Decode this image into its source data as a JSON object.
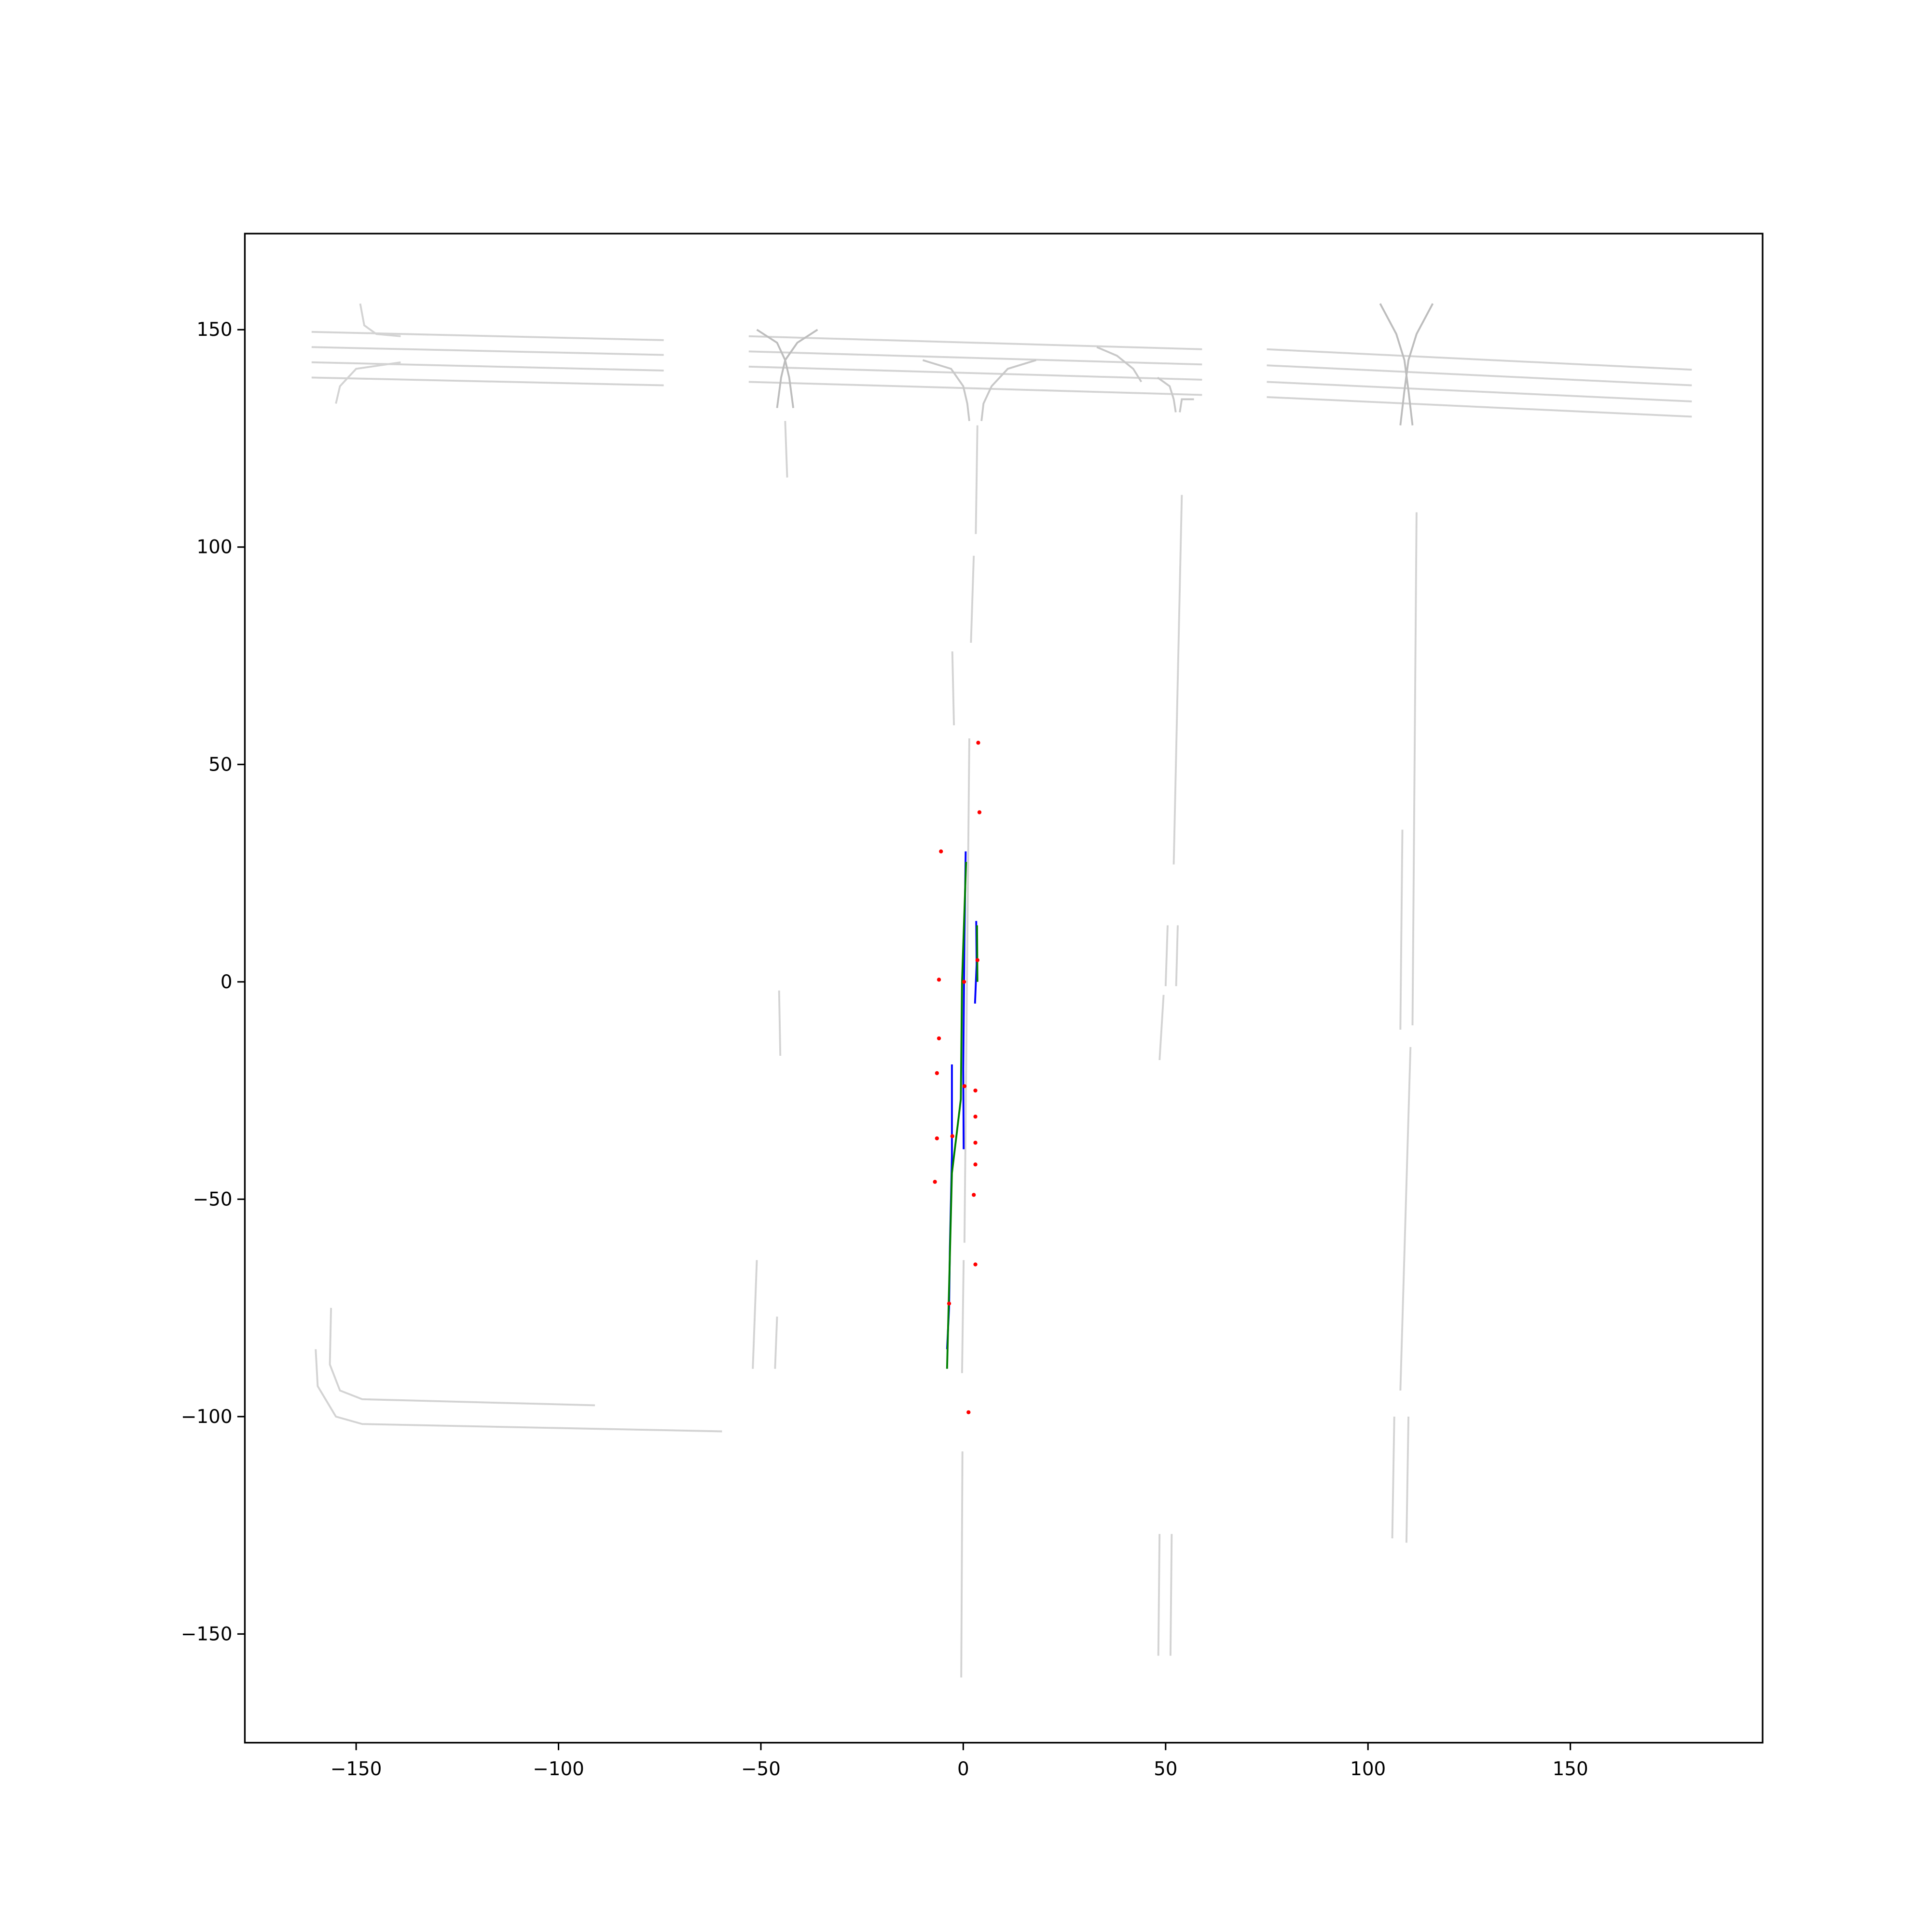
{
  "chart_data": {
    "type": "line",
    "xlim": [
      -177.5,
      197.5
    ],
    "ylim": [
      -175,
      172.1
    ],
    "xticks": [
      {
        "value": -150,
        "label": "−150"
      },
      {
        "value": -100,
        "label": "−100"
      },
      {
        "value": -50,
        "label": "−50"
      },
      0,
      50,
      100,
      150
    ],
    "yticks": [
      {
        "value": -150,
        "label": "−150"
      },
      {
        "value": -100,
        "label": "−100"
      },
      {
        "value": -50,
        "label": "−50"
      },
      0,
      50,
      100,
      150
    ],
    "grid": false,
    "series": [
      {
        "color": "#d3d3d3",
        "x": [
          -161,
          -74
        ],
        "y": [
          149.5,
          147.6
        ]
      },
      {
        "color": "#d3d3d3",
        "x": [
          -161,
          -74
        ],
        "y": [
          146,
          144.2
        ]
      },
      {
        "color": "#d3d3d3",
        "x": [
          -161,
          -74
        ],
        "y": [
          142.5,
          140.6
        ]
      },
      {
        "color": "#d3d3d3",
        "x": [
          -161,
          -74
        ],
        "y": [
          139,
          137.2
        ]
      },
      {
        "color": "#d3d3d3",
        "x": [
          -53,
          59
        ],
        "y": [
          148.5,
          145.5
        ]
      },
      {
        "color": "#d3d3d3",
        "x": [
          -53,
          59
        ],
        "y": [
          145,
          142
        ]
      },
      {
        "color": "#d3d3d3",
        "x": [
          -53,
          59
        ],
        "y": [
          141.5,
          138.5
        ]
      },
      {
        "color": "#d3d3d3",
        "x": [
          -53,
          59
        ],
        "y": [
          138,
          135
        ]
      },
      {
        "color": "#d3d3d3",
        "x": [
          75,
          180
        ],
        "y": [
          145.5,
          140.8
        ]
      },
      {
        "color": "#d3d3d3",
        "x": [
          75,
          180
        ],
        "y": [
          141.8,
          137.2
        ]
      },
      {
        "color": "#d3d3d3",
        "x": [
          75,
          180
        ],
        "y": [
          138,
          133.5
        ]
      },
      {
        "color": "#d3d3d3",
        "x": [
          75,
          180
        ],
        "y": [
          134.5,
          130
        ]
      },
      {
        "color": "#bdbdbd",
        "x": [
          -51,
          -46,
          -44,
          -43,
          -42
        ],
        "y": [
          150,
          147,
          143,
          139,
          132
        ]
      },
      {
        "color": "#bdbdbd",
        "x": [
          -36,
          -41,
          -44,
          -45,
          -46
        ],
        "y": [
          150,
          147,
          143,
          139,
          132
        ]
      },
      {
        "color": "#bdbdbd",
        "x": [
          103,
          107,
          109,
          110,
          111
        ],
        "y": [
          156,
          149,
          143,
          136,
          128
        ]
      },
      {
        "color": "#bdbdbd",
        "x": [
          116,
          112,
          110,
          109,
          108
        ],
        "y": [
          156,
          149,
          143,
          136,
          128
        ]
      },
      {
        "color": "#c8c8c8",
        "x": [
          -10,
          -3,
          0,
          1,
          1.5
        ],
        "y": [
          143,
          141,
          137,
          133,
          129
        ]
      },
      {
        "color": "#c8c8c8",
        "x": [
          18,
          11,
          7,
          5,
          4.5
        ],
        "y": [
          143,
          141,
          137,
          133,
          129
        ]
      },
      {
        "color": "#c8c8c8",
        "x": [
          33,
          38,
          42,
          44
        ],
        "y": [
          146,
          144,
          141,
          138
        ]
      },
      {
        "color": "#c8c8c8",
        "x": [
          48,
          51,
          52,
          52.5
        ],
        "y": [
          139,
          137,
          134,
          131
        ]
      },
      {
        "color": "#c8c8c8",
        "x": [
          57,
          54,
          53.5
        ],
        "y": [
          134,
          134,
          131
        ]
      },
      {
        "color": "#d3d3d3",
        "x": [
          -149,
          -148,
          -145,
          -139
        ],
        "y": [
          156,
          151,
          149,
          148.5
        ]
      },
      {
        "color": "#d3d3d3",
        "x": [
          -155,
          -154,
          -150,
          -139
        ],
        "y": [
          133,
          137,
          141,
          142.5
        ]
      },
      {
        "color": "#d3d3d3",
        "x": [
          3.5,
          3.1,
          null,
          2.6,
          1.9,
          null,
          1.5,
          0.3,
          null,
          0.1,
          -0.3,
          null,
          -0.2,
          -0.5
        ],
        "y": [
          128,
          103,
          null,
          98,
          78,
          null,
          56,
          -60,
          null,
          -64,
          -90,
          null,
          -108,
          -160
        ]
      },
      {
        "color": "#d3d3d3",
        "x": [
          -2.7,
          -2.3
        ],
        "y": [
          76,
          59
        ]
      },
      {
        "color": "#d3d3d3",
        "x": [
          -44,
          -43.5
        ],
        "y": [
          129,
          116
        ]
      },
      {
        "color": "#d3d3d3",
        "x": [
          -45.5,
          -45.2
        ],
        "y": [
          -2,
          -17
        ]
      },
      {
        "color": "#d3d3d3",
        "x": [
          -51,
          -52
        ],
        "y": [
          -64,
          -89
        ]
      },
      {
        "color": "#d3d3d3",
        "x": [
          -46,
          -46.5
        ],
        "y": [
          -77,
          -89
        ]
      },
      {
        "color": "#d3d3d3",
        "x": [
          54,
          52,
          null,
          50.5,
          50,
          null,
          49.5,
          48.5
        ],
        "y": [
          112,
          27,
          null,
          13,
          -1,
          null,
          -3,
          -18
        ]
      },
      {
        "color": "#d3d3d3",
        "x": [
          53,
          52.6
        ],
        "y": [
          13,
          -1
        ]
      },
      {
        "color": "#d3d3d3",
        "x": [
          48.5,
          48.2
        ],
        "y": [
          -127,
          -155
        ]
      },
      {
        "color": "#d3d3d3",
        "x": [
          51.5,
          51.2
        ],
        "y": [
          -127,
          -155
        ]
      },
      {
        "color": "#d3d3d3",
        "x": [
          112,
          111,
          null,
          110.5,
          108,
          null,
          106.5,
          106
        ],
        "y": [
          108,
          -10,
          null,
          -15,
          -94,
          null,
          -100,
          -128
        ]
      },
      {
        "color": "#d3d3d3",
        "x": [
          108.5,
          108
        ],
        "y": [
          35,
          -11
        ]
      },
      {
        "color": "#d3d3d3",
        "x": [
          110,
          109.5
        ],
        "y": [
          -100,
          -129
        ]
      },
      {
        "color": "#d3d3d3",
        "x": [
          -156.2,
          -156.5,
          -154,
          -148.5,
          -91
        ],
        "y": [
          -75,
          -88,
          -94,
          -96,
          -97.4
        ]
      },
      {
        "color": "#d3d3d3",
        "x": [
          -160,
          -159.5,
          -155,
          -148.5,
          -59.6
        ],
        "y": [
          -84.5,
          -93,
          -100,
          -101.7,
          -103.4
        ]
      },
      {
        "color": "#0000ff",
        "x": [
          0.6,
          0.3,
          0,
          0.1
        ],
        "y": [
          30,
          10,
          -20,
          -38.5
        ]
      },
      {
        "color": "#0000ff",
        "x": [
          -2.8,
          -2.8,
          -3.3,
          -3.5,
          -4
        ],
        "y": [
          -19,
          -40,
          -61,
          -75,
          -84.5
        ]
      },
      {
        "color": "#0000ff",
        "x": [
          3.2,
          3.3,
          2.9
        ],
        "y": [
          14,
          4,
          -5
        ]
      },
      {
        "color": "#008000",
        "x": [
          0.7,
          -0.3,
          -0.6,
          -2.8,
          -4
        ],
        "y": [
          27.6,
          0,
          -27,
          -44,
          -89
        ]
      },
      {
        "color": "#008000",
        "x": [
          3.4,
          3.5
        ],
        "y": [
          13,
          0
        ]
      }
    ],
    "scatter": {
      "color": "#ff0000",
      "x": [
        3.7,
        4,
        -5.5,
        -6,
        -6,
        -6.5,
        -6.5,
        -7,
        3,
        3,
        3,
        3,
        2.6,
        3,
        -2.7,
        -3.5,
        1.3,
        3.5,
        0.3,
        0.2
      ],
      "y": [
        55,
        39,
        30,
        0.5,
        -13,
        -21,
        -36,
        -46,
        -25,
        -31,
        -37,
        -42,
        -49,
        -65,
        -35.5,
        -74,
        -99,
        5,
        -24,
        0
      ]
    }
  }
}
